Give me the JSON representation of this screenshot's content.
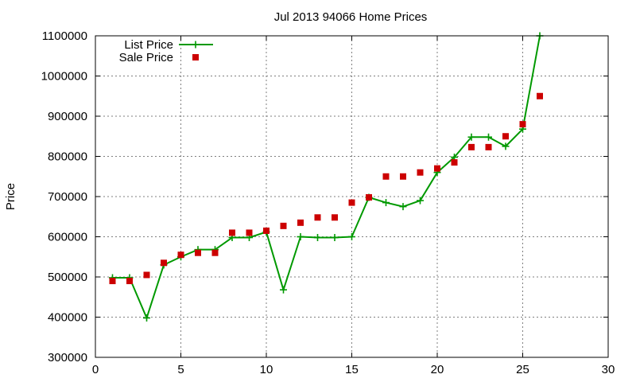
{
  "chart_data": {
    "type": "line",
    "title": "Jul 2013 94066 Home Prices",
    "xlabel": "",
    "ylabel": "Price",
    "xlim": [
      0,
      30
    ],
    "ylim": [
      300000,
      1100000
    ],
    "x_ticks": [
      0,
      5,
      10,
      15,
      20,
      25,
      30
    ],
    "y_ticks": [
      300000,
      400000,
      500000,
      600000,
      700000,
      800000,
      900000,
      1000000,
      1100000
    ],
    "grid": true,
    "legend_position": "top-left",
    "series": [
      {
        "name": "List Price",
        "color": "#009900",
        "marker": "plus",
        "style": "line",
        "x": [
          1,
          2,
          3,
          4,
          5,
          6,
          7,
          8,
          9,
          10,
          11,
          12,
          13,
          14,
          15,
          16,
          17,
          18,
          19,
          20,
          21,
          22,
          23,
          24,
          25,
          26
        ],
        "y": [
          498000,
          498000,
          398000,
          530000,
          550000,
          568000,
          568000,
          598000,
          598000,
          612000,
          468000,
          600000,
          598000,
          598000,
          600000,
          698000,
          685000,
          675000,
          690000,
          760000,
          798000,
          848000,
          848000,
          825000,
          868000,
          1100000
        ]
      },
      {
        "name": "Sale Price",
        "color": "#cc0000",
        "marker": "square",
        "style": "points",
        "x": [
          1,
          2,
          3,
          4,
          5,
          6,
          7,
          8,
          9,
          10,
          11,
          12,
          13,
          14,
          15,
          16,
          17,
          18,
          19,
          20,
          21,
          22,
          23,
          24,
          25,
          26
        ],
        "y": [
          490000,
          490000,
          505000,
          535000,
          555000,
          560000,
          560000,
          610000,
          610000,
          615000,
          627000,
          635000,
          648000,
          648000,
          685000,
          698000,
          750000,
          750000,
          760000,
          770000,
          785000,
          823000,
          823000,
          850000,
          880000,
          950000
        ]
      }
    ]
  }
}
